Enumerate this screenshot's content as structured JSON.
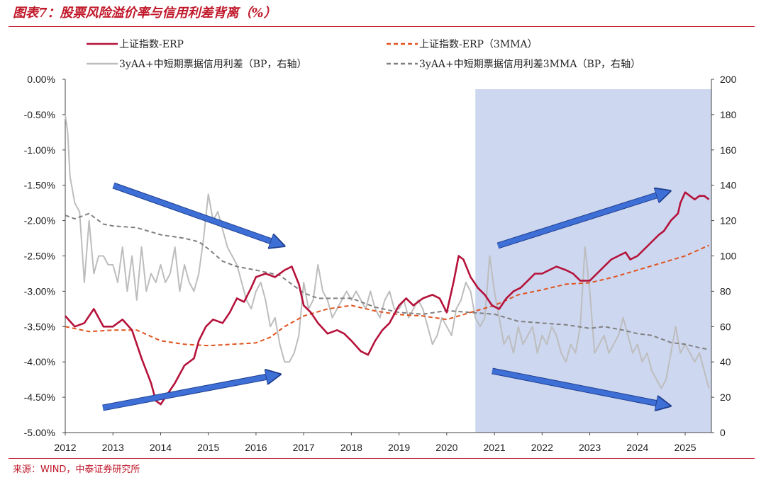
{
  "title": "图表7：股票风险溢价率与信用利差背离（%）",
  "source": "来源：WIND，中泰证券研究所",
  "chart_data": {
    "type": "line",
    "x_ticks": [
      "2012",
      "2013",
      "2014",
      "2015",
      "2016",
      "2017",
      "2018",
      "2019",
      "2020",
      "2021",
      "2022",
      "2023",
      "2024",
      "2025"
    ],
    "left_axis": {
      "ticks": [
        "0.00%",
        "-0.50%",
        "-1.00%",
        "-1.50%",
        "-2.00%",
        "-2.50%",
        "-3.00%",
        "-3.50%",
        "-4.00%",
        "-4.50%",
        "-5.00%"
      ],
      "min": -5.0,
      "max": 0.0
    },
    "right_axis": {
      "ticks": [
        "200",
        "180",
        "160",
        "140",
        "120",
        "100",
        "80",
        "60",
        "40",
        "20",
        "0"
      ],
      "min": 0,
      "max": 200
    },
    "shaded_region": {
      "x_start": 2020.6,
      "x_end": 2025.55,
      "color": "#cdd7f0"
    },
    "series": [
      {
        "name": "上证指数-ERP",
        "axis": "left",
        "color": "#b5123a",
        "style": "solid",
        "points": [
          [
            2012.0,
            -3.35
          ],
          [
            2012.2,
            -3.5
          ],
          [
            2012.4,
            -3.45
          ],
          [
            2012.6,
            -3.25
          ],
          [
            2012.8,
            -3.5
          ],
          [
            2013.0,
            -3.5
          ],
          [
            2013.2,
            -3.4
          ],
          [
            2013.4,
            -3.55
          ],
          [
            2013.6,
            -3.95
          ],
          [
            2013.8,
            -4.3
          ],
          [
            2013.9,
            -4.55
          ],
          [
            2014.0,
            -4.6
          ],
          [
            2014.15,
            -4.45
          ],
          [
            2014.3,
            -4.3
          ],
          [
            2014.5,
            -4.05
          ],
          [
            2014.7,
            -3.95
          ],
          [
            2014.8,
            -3.7
          ],
          [
            2014.95,
            -3.5
          ],
          [
            2015.1,
            -3.4
          ],
          [
            2015.3,
            -3.45
          ],
          [
            2015.45,
            -3.3
          ],
          [
            2015.6,
            -3.1
          ],
          [
            2015.75,
            -3.15
          ],
          [
            2015.9,
            -2.95
          ],
          [
            2016.0,
            -2.8
          ],
          [
            2016.2,
            -2.75
          ],
          [
            2016.4,
            -2.8
          ],
          [
            2016.6,
            -2.7
          ],
          [
            2016.75,
            -2.65
          ],
          [
            2016.9,
            -2.9
          ],
          [
            2017.0,
            -3.2
          ],
          [
            2017.15,
            -3.3
          ],
          [
            2017.3,
            -3.45
          ],
          [
            2017.5,
            -3.6
          ],
          [
            2017.7,
            -3.55
          ],
          [
            2017.85,
            -3.6
          ],
          [
            2018.0,
            -3.7
          ],
          [
            2018.2,
            -3.85
          ],
          [
            2018.35,
            -3.9
          ],
          [
            2018.5,
            -3.7
          ],
          [
            2018.65,
            -3.55
          ],
          [
            2018.8,
            -3.45
          ],
          [
            2019.0,
            -3.2
          ],
          [
            2019.15,
            -3.1
          ],
          [
            2019.3,
            -3.2
          ],
          [
            2019.5,
            -3.1
          ],
          [
            2019.7,
            -3.05
          ],
          [
            2019.85,
            -3.1
          ],
          [
            2020.0,
            -3.3
          ],
          [
            2020.15,
            -2.85
          ],
          [
            2020.25,
            -2.5
          ],
          [
            2020.35,
            -2.55
          ],
          [
            2020.5,
            -2.8
          ],
          [
            2020.65,
            -2.95
          ],
          [
            2020.8,
            -3.05
          ],
          [
            2020.95,
            -3.2
          ],
          [
            2021.1,
            -3.25
          ],
          [
            2021.25,
            -3.1
          ],
          [
            2021.4,
            -3.0
          ],
          [
            2021.55,
            -2.95
          ],
          [
            2021.7,
            -2.85
          ],
          [
            2021.85,
            -2.75
          ],
          [
            2022.0,
            -2.75
          ],
          [
            2022.15,
            -2.7
          ],
          [
            2022.3,
            -2.65
          ],
          [
            2022.5,
            -2.7
          ],
          [
            2022.65,
            -2.75
          ],
          [
            2022.8,
            -2.85
          ],
          [
            2023.0,
            -2.85
          ],
          [
            2023.15,
            -2.75
          ],
          [
            2023.3,
            -2.65
          ],
          [
            2023.45,
            -2.55
          ],
          [
            2023.6,
            -2.5
          ],
          [
            2023.75,
            -2.45
          ],
          [
            2023.85,
            -2.55
          ],
          [
            2024.0,
            -2.5
          ],
          [
            2024.15,
            -2.4
          ],
          [
            2024.3,
            -2.3
          ],
          [
            2024.45,
            -2.2
          ],
          [
            2024.55,
            -2.15
          ],
          [
            2024.7,
            -2.0
          ],
          [
            2024.85,
            -1.9
          ],
          [
            2024.9,
            -1.75
          ],
          [
            2025.0,
            -1.6
          ],
          [
            2025.1,
            -1.65
          ],
          [
            2025.2,
            -1.7
          ],
          [
            2025.3,
            -1.65
          ],
          [
            2025.4,
            -1.65
          ],
          [
            2025.5,
            -1.7
          ]
        ]
      },
      {
        "name": "上证指数-ERP（3MMA）",
        "axis": "left",
        "color": "#e0531f",
        "style": "dashed",
        "points": [
          [
            2012.0,
            -3.5
          ],
          [
            2012.5,
            -3.57
          ],
          [
            2013.0,
            -3.55
          ],
          [
            2013.5,
            -3.55
          ],
          [
            2014.0,
            -3.7
          ],
          [
            2014.5,
            -3.75
          ],
          [
            2015.0,
            -3.77
          ],
          [
            2015.5,
            -3.75
          ],
          [
            2016.0,
            -3.73
          ],
          [
            2016.3,
            -3.65
          ],
          [
            2016.6,
            -3.5
          ],
          [
            2017.0,
            -3.35
          ],
          [
            2017.5,
            -3.25
          ],
          [
            2018.0,
            -3.2
          ],
          [
            2018.5,
            -3.28
          ],
          [
            2019.0,
            -3.33
          ],
          [
            2019.5,
            -3.35
          ],
          [
            2020.0,
            -3.4
          ],
          [
            2020.5,
            -3.3
          ],
          [
            2021.0,
            -3.2
          ],
          [
            2021.5,
            -3.05
          ],
          [
            2022.0,
            -2.98
          ],
          [
            2022.5,
            -2.9
          ],
          [
            2023.0,
            -2.88
          ],
          [
            2023.5,
            -2.8
          ],
          [
            2024.0,
            -2.7
          ],
          [
            2024.5,
            -2.6
          ],
          [
            2025.0,
            -2.5
          ],
          [
            2025.5,
            -2.35
          ]
        ]
      },
      {
        "name": "3yAA+中短期票据信用利差（BP，右轴）",
        "axis": "right",
        "color": "#bdbdbd",
        "style": "solid",
        "points": [
          [
            2012.0,
            180
          ],
          [
            2012.05,
            170
          ],
          [
            2012.1,
            145
          ],
          [
            2012.2,
            130
          ],
          [
            2012.3,
            125
          ],
          [
            2012.4,
            85
          ],
          [
            2012.5,
            120
          ],
          [
            2012.6,
            90
          ],
          [
            2012.7,
            100
          ],
          [
            2012.8,
            100
          ],
          [
            2012.9,
            95
          ],
          [
            2013.0,
            95
          ],
          [
            2013.1,
            85
          ],
          [
            2013.2,
            105
          ],
          [
            2013.3,
            80
          ],
          [
            2013.4,
            100
          ],
          [
            2013.5,
            75
          ],
          [
            2013.6,
            105
          ],
          [
            2013.7,
            80
          ],
          [
            2013.8,
            90
          ],
          [
            2013.9,
            85
          ],
          [
            2014.0,
            95
          ],
          [
            2014.1,
            85
          ],
          [
            2014.2,
            90
          ],
          [
            2014.3,
            105
          ],
          [
            2014.4,
            80
          ],
          [
            2014.5,
            95
          ],
          [
            2014.6,
            85
          ],
          [
            2014.7,
            80
          ],
          [
            2014.8,
            90
          ],
          [
            2014.9,
            110
          ],
          [
            2015.0,
            135
          ],
          [
            2015.1,
            120
          ],
          [
            2015.2,
            125
          ],
          [
            2015.3,
            115
          ],
          [
            2015.4,
            105
          ],
          [
            2015.5,
            100
          ],
          [
            2015.6,
            95
          ],
          [
            2015.7,
            85
          ],
          [
            2015.8,
            75
          ],
          [
            2015.9,
            70
          ],
          [
            2016.0,
            80
          ],
          [
            2016.1,
            85
          ],
          [
            2016.2,
            75
          ],
          [
            2016.3,
            60
          ],
          [
            2016.4,
            65
          ],
          [
            2016.5,
            50
          ],
          [
            2016.6,
            40
          ],
          [
            2016.7,
            40
          ],
          [
            2016.8,
            45
          ],
          [
            2016.9,
            55
          ],
          [
            2017.0,
            85
          ],
          [
            2017.1,
            70
          ],
          [
            2017.2,
            75
          ],
          [
            2017.3,
            95
          ],
          [
            2017.4,
            80
          ],
          [
            2017.5,
            75
          ],
          [
            2017.6,
            65
          ],
          [
            2017.7,
            70
          ],
          [
            2017.8,
            75
          ],
          [
            2017.9,
            80
          ],
          [
            2018.0,
            75
          ],
          [
            2018.1,
            80
          ],
          [
            2018.2,
            75
          ],
          [
            2018.3,
            70
          ],
          [
            2018.4,
            80
          ],
          [
            2018.5,
            70
          ],
          [
            2018.6,
            65
          ],
          [
            2018.7,
            75
          ],
          [
            2018.8,
            80
          ],
          [
            2018.9,
            70
          ],
          [
            2019.0,
            70
          ],
          [
            2019.1,
            75
          ],
          [
            2019.2,
            65
          ],
          [
            2019.3,
            70
          ],
          [
            2019.4,
            75
          ],
          [
            2019.5,
            70
          ],
          [
            2019.6,
            60
          ],
          [
            2019.7,
            50
          ],
          [
            2019.8,
            55
          ],
          [
            2019.9,
            65
          ],
          [
            2020.0,
            60
          ],
          [
            2020.1,
            55
          ],
          [
            2020.2,
            70
          ],
          [
            2020.3,
            75
          ],
          [
            2020.4,
            85
          ],
          [
            2020.5,
            80
          ],
          [
            2020.6,
            65
          ],
          [
            2020.7,
            60
          ],
          [
            2020.8,
            65
          ],
          [
            2020.9,
            100
          ],
          [
            2021.0,
            80
          ],
          [
            2021.1,
            65
          ],
          [
            2021.2,
            50
          ],
          [
            2021.3,
            55
          ],
          [
            2021.4,
            45
          ],
          [
            2021.5,
            60
          ],
          [
            2021.6,
            50
          ],
          [
            2021.7,
            55
          ],
          [
            2021.8,
            60
          ],
          [
            2021.9,
            45
          ],
          [
            2022.0,
            55
          ],
          [
            2022.1,
            50
          ],
          [
            2022.2,
            60
          ],
          [
            2022.3,
            55
          ],
          [
            2022.4,
            45
          ],
          [
            2022.5,
            40
          ],
          [
            2022.6,
            50
          ],
          [
            2022.7,
            45
          ],
          [
            2022.8,
            60
          ],
          [
            2022.9,
            105
          ],
          [
            2023.0,
            80
          ],
          [
            2023.1,
            45
          ],
          [
            2023.2,
            50
          ],
          [
            2023.3,
            55
          ],
          [
            2023.4,
            45
          ],
          [
            2023.5,
            50
          ],
          [
            2023.6,
            55
          ],
          [
            2023.7,
            65
          ],
          [
            2023.8,
            55
          ],
          [
            2023.9,
            45
          ],
          [
            2024.0,
            50
          ],
          [
            2024.1,
            40
          ],
          [
            2024.2,
            45
          ],
          [
            2024.3,
            35
          ],
          [
            2024.4,
            30
          ],
          [
            2024.5,
            25
          ],
          [
            2024.6,
            30
          ],
          [
            2024.7,
            45
          ],
          [
            2024.8,
            60
          ],
          [
            2024.9,
            45
          ],
          [
            2025.0,
            50
          ],
          [
            2025.1,
            45
          ],
          [
            2025.2,
            40
          ],
          [
            2025.3,
            45
          ],
          [
            2025.4,
            35
          ],
          [
            2025.5,
            25
          ]
        ]
      },
      {
        "name": "3yAA+中短期票据信用利差3MMA（BP，右轴）",
        "axis": "right",
        "color": "#808080",
        "style": "dashed",
        "points": [
          [
            2012.0,
            123
          ],
          [
            2012.2,
            121
          ],
          [
            2012.5,
            124
          ],
          [
            2012.8,
            118
          ],
          [
            2013.0,
            117
          ],
          [
            2013.5,
            116
          ],
          [
            2014.0,
            112
          ],
          [
            2014.5,
            110
          ],
          [
            2014.8,
            108
          ],
          [
            2015.0,
            104
          ],
          [
            2015.3,
            97
          ],
          [
            2015.6,
            94
          ],
          [
            2016.0,
            92
          ],
          [
            2016.5,
            89
          ],
          [
            2017.0,
            79
          ],
          [
            2017.3,
            76
          ],
          [
            2017.7,
            76
          ],
          [
            2018.0,
            76
          ],
          [
            2018.5,
            71
          ],
          [
            2019.0,
            68
          ],
          [
            2019.5,
            67
          ],
          [
            2020.0,
            69
          ],
          [
            2020.5,
            68
          ],
          [
            2021.0,
            67
          ],
          [
            2021.5,
            63
          ],
          [
            2022.0,
            62
          ],
          [
            2022.5,
            61
          ],
          [
            2023.0,
            59
          ],
          [
            2023.3,
            60
          ],
          [
            2023.7,
            58
          ],
          [
            2024.0,
            56
          ],
          [
            2024.3,
            55
          ],
          [
            2024.7,
            51
          ],
          [
            2025.0,
            50
          ],
          [
            2025.3,
            48
          ],
          [
            2025.5,
            47
          ]
        ]
      }
    ],
    "legend": {
      "placement": "top",
      "columns": 2
    }
  }
}
